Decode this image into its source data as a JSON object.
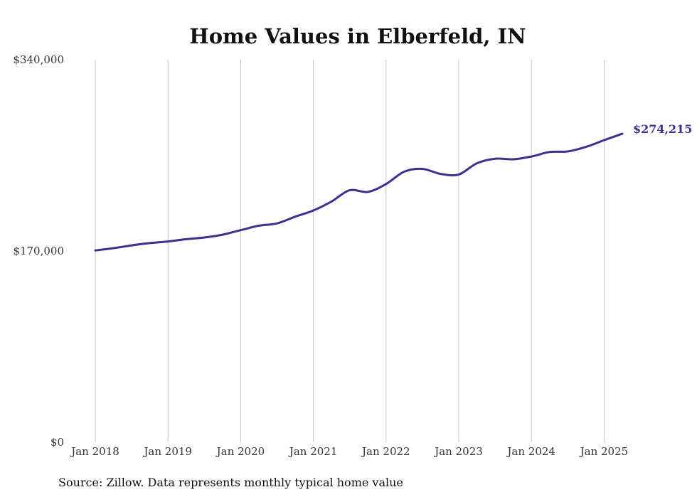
{
  "chart_data": {
    "type": "line",
    "title": "Home Values in Elberfeld, IN",
    "xlabel": "",
    "ylabel": "",
    "ylim": [
      0,
      340000
    ],
    "y_ticks": [
      0,
      170000,
      340000
    ],
    "y_tick_labels": [
      "$0",
      "$170,000",
      "$340,000"
    ],
    "x_ticks": [
      "2018-01",
      "2019-01",
      "2020-01",
      "2021-01",
      "2022-01",
      "2023-01",
      "2024-01",
      "2025-01"
    ],
    "x_tick_labels": [
      "Jan 2018",
      "Jan 2019",
      "Jan 2020",
      "Jan 2021",
      "Jan 2022",
      "Jan 2023",
      "Jan 2024",
      "Jan 2025"
    ],
    "grid": "vertical",
    "line_color": "#3b3190",
    "end_label": "$274,215",
    "source": "Source: Zillow. Data represents monthly typical home value",
    "series": [
      {
        "x": [
          "2018-01",
          "2018-04",
          "2018-07",
          "2018-10",
          "2019-01",
          "2019-04",
          "2019-07",
          "2019-10",
          "2020-01",
          "2020-04",
          "2020-07",
          "2020-10",
          "2021-01",
          "2021-04",
          "2021-07",
          "2021-10",
          "2022-01",
          "2022-04",
          "2022-07",
          "2022-10",
          "2023-01",
          "2023-04",
          "2023-07",
          "2023-10",
          "2024-01",
          "2024-04",
          "2024-07",
          "2024-10",
          "2025-01",
          "2025-04"
        ],
        "values": [
          170500,
          172500,
          175000,
          177000,
          178500,
          180500,
          182000,
          184500,
          188500,
          192500,
          194500,
          200500,
          206000,
          214000,
          224000,
          222500,
          229500,
          240500,
          243000,
          238500,
          238000,
          248000,
          252000,
          251500,
          254000,
          258000,
          258500,
          262500,
          268500,
          274215
        ]
      }
    ]
  }
}
